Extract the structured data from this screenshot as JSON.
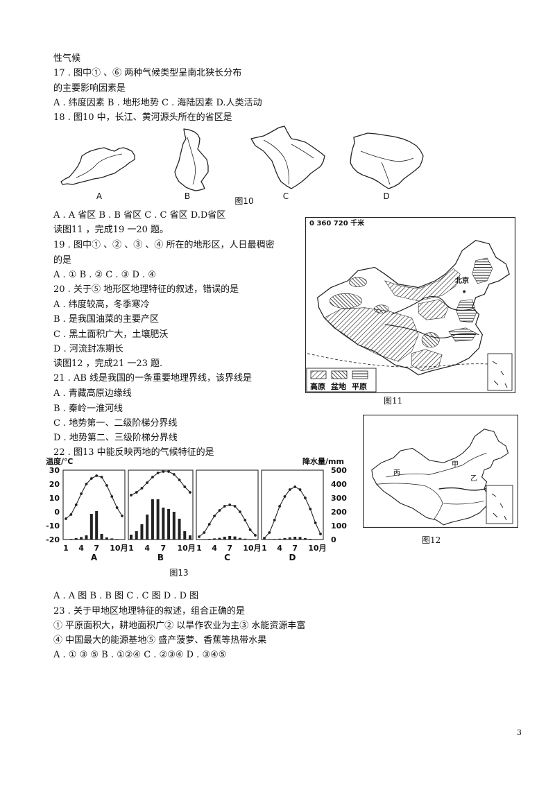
{
  "page_number": "3",
  "fragment": "性气候",
  "q17": {
    "stem": "17 . 图中① 、⑥ 两种气候类型呈南北狭长分布",
    "stem_cont": "的主要影响因素是",
    "options": "A . 纬度因素 B . 地形地势 C . 海陆因素 D.人类活动"
  },
  "q18": {
    "stem": "18 . 图10 中，长江、黄河源头所在的省区是",
    "options": "A . A 省区  B . B 省区  C . C 省区  D.D省区"
  },
  "figure10": {
    "caption": "图10",
    "label_a": "A",
    "label_b": "B",
    "label_c": "C",
    "label_d": "D"
  },
  "instruction_19_20": "读图11 ，完成19 一20 题。",
  "q19": {
    "stem": "19 . 图中① 、② 、③ 、④ 所在的地形区，人日最稠密",
    "stem_cont": "的是",
    "options": "A . ① B . ② C . ③ D . ④"
  },
  "q20": {
    "stem": "20 . 关于⑤ 地形区地理特征的叙述，错误的是",
    "options": [
      "A . 纬度较高，冬季寒冷",
      "B . 是我国油菜的主要产区",
      "C . 黑土面积广大，土壤肥沃",
      "D . 河流封冻期长"
    ]
  },
  "figure11": {
    "scale": "0  360 720 千米",
    "legend": [
      "高原",
      "盆地",
      "平原"
    ],
    "city": "北京",
    "caption": "图11"
  },
  "instruction_21_23": "读图12 ，完成21 一23 题.",
  "q21": {
    "stem": "21 . AB 线是我国的一条重要地理界线，该界线是",
    "options": [
      "A . 青藏高原边缘线",
      "B . 秦岭一淮河线",
      "C . 地势第一、二级阶梯分界线",
      "D . 地势第二、三级阶梯分界线"
    ]
  },
  "figure12": {
    "label_jia": "甲",
    "label_yi": "乙",
    "label_bing": "丙",
    "caption": "图12"
  },
  "q22": {
    "stem": "22 . 图13 中能反映丙地的气候特征的是",
    "options": "A . A 图  B . B 图 C . C 图 D . D 图"
  },
  "figure13": {
    "caption": "图13"
  },
  "chart_data": {
    "type": "bar",
    "ylabel": "温度/℃",
    "y2label": "降水量/mm",
    "ylim": [
      -20,
      30
    ],
    "y2lim": [
      0,
      500
    ],
    "yticks": [
      "30",
      "20",
      "10",
      "0",
      "-10",
      "-20"
    ],
    "y2ticks": [
      "500",
      "400",
      "300",
      "200",
      "100",
      "0"
    ],
    "xticks": [
      "1",
      "4",
      "7",
      "10月"
    ],
    "x": [
      1,
      2,
      3,
      4,
      5,
      6,
      7,
      8,
      9,
      10,
      11,
      12
    ],
    "panels": [
      {
        "label": "A",
        "temperature": [
          -5,
          -2,
          5,
          13,
          20,
          24,
          26,
          25,
          19,
          11,
          3,
          -3
        ],
        "precipitation": [
          3,
          5,
          10,
          18,
          30,
          185,
          205,
          40,
          15,
          8,
          4,
          2
        ]
      },
      {
        "label": "B",
        "temperature": [
          12,
          14,
          17,
          21,
          25,
          28,
          29,
          29,
          27,
          23,
          18,
          14
        ],
        "precipitation": [
          35,
          60,
          110,
          180,
          290,
          290,
          230,
          220,
          200,
          150,
          60,
          30
        ]
      },
      {
        "label": "C",
        "temperature": [
          -18,
          -15,
          -9,
          -3,
          1,
          4,
          5,
          4,
          0,
          -6,
          -13,
          -17
        ],
        "precipitation": [
          2,
          3,
          5,
          8,
          12,
          20,
          25,
          22,
          12,
          6,
          3,
          2
        ]
      },
      {
        "label": "D",
        "temperature": [
          -19,
          -15,
          -6,
          4,
          11,
          16,
          18,
          16,
          10,
          2,
          -8,
          -16
        ],
        "precipitation": [
          2,
          3,
          4,
          6,
          10,
          15,
          20,
          18,
          10,
          5,
          3,
          2
        ]
      }
    ]
  },
  "q23": {
    "stem": "23 . 关于甲地区地理特征的叙述，组合正确的是",
    "statements": [
      "① 平原面积大，耕地面积广② 以旱作农业为主③ 水能资源丰富",
      "④ 中国最大的能源基地⑤ 盛产菠萝、香蕉等热带水果"
    ],
    "options": "A . ① ③ ⑤ B . ①②④  C . ②③④  D . ③④⑤"
  }
}
